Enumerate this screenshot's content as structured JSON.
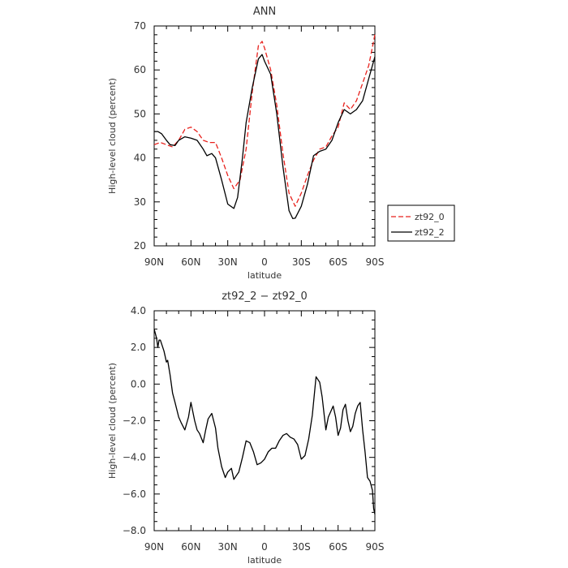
{
  "chart_data": [
    {
      "type": "line",
      "title": "ANN",
      "xlabel": "latitude",
      "ylabel": "High-level cloud (percent)",
      "xlim": [
        90,
        -90
      ],
      "ylim": [
        20,
        70
      ],
      "xticks": [
        90,
        60,
        30,
        0,
        -30,
        -60,
        -90
      ],
      "xtick_labels": [
        "90N",
        "60N",
        "30N",
        "0",
        "30S",
        "60S",
        "90S"
      ],
      "yticks": [
        20,
        30,
        40,
        50,
        60,
        70
      ],
      "ytick_labels": [
        "20",
        "30",
        "40",
        "50",
        "60",
        "70"
      ],
      "legend": "right",
      "series": [
        {
          "name": "zt92_0",
          "color": "#e8211c",
          "dash": "dashed",
          "x": [
            90,
            85,
            80,
            75,
            70,
            65,
            60,
            55,
            50,
            45,
            40,
            35,
            30,
            25,
            20,
            15,
            10,
            5,
            2,
            0,
            -5,
            -10,
            -15,
            -20,
            -25,
            -30,
            -35,
            -40,
            -45,
            -50,
            -55,
            -60,
            -65,
            -70,
            -75,
            -80,
            -85,
            -90
          ],
          "y": [
            43,
            43.5,
            43,
            42.5,
            44,
            46.5,
            47,
            46,
            44,
            43.5,
            43.5,
            40,
            36,
            33,
            35,
            42,
            55,
            65.5,
            66.5,
            65,
            60,
            52,
            41,
            32,
            29,
            32,
            36,
            39.5,
            42,
            42.5,
            45,
            47,
            52.5,
            51,
            53,
            57,
            61,
            68
          ]
        },
        {
          "name": "zt92_2",
          "color": "#000000",
          "dash": "solid",
          "x": [
            90,
            87,
            84,
            80,
            77,
            73,
            70,
            65,
            60,
            55,
            50,
            47,
            43,
            40,
            35,
            30,
            25,
            22,
            18,
            15,
            10,
            5,
            2,
            0,
            -5,
            -10,
            -15,
            -20,
            -23,
            -25,
            -30,
            -35,
            -40,
            -45,
            -50,
            -55,
            -60,
            -65,
            -70,
            -75,
            -80,
            -85,
            -90
          ],
          "y": [
            46,
            46,
            45.5,
            44,
            43,
            42.8,
            44,
            44.8,
            44.5,
            44,
            42,
            40.5,
            41,
            40,
            35,
            29.5,
            28.5,
            31,
            40,
            48,
            56,
            62.5,
            63.5,
            62,
            59,
            50,
            38,
            28,
            26.2,
            26.3,
            29,
            34,
            40.5,
            41.5,
            42,
            44,
            48,
            51,
            50,
            51,
            53,
            58,
            63
          ]
        }
      ]
    },
    {
      "type": "line",
      "title": "zt92_2 − zt92_0",
      "xlabel": "latitude",
      "ylabel": "High-level cloud (percent)",
      "xlim": [
        90,
        -90
      ],
      "ylim": [
        -8,
        4
      ],
      "xticks": [
        90,
        60,
        30,
        0,
        -30,
        -60,
        -90
      ],
      "xtick_labels": [
        "90N",
        "60N",
        "30N",
        "0",
        "30S",
        "60S",
        "90S"
      ],
      "yticks": [
        4,
        2,
        0,
        -2,
        -4,
        -6,
        -8
      ],
      "ytick_labels": [
        "4.0",
        "2.0",
        "0.0",
        "−2.0",
        "−4.0",
        "−6.0",
        "−8.0"
      ],
      "series": [
        {
          "name": "",
          "color": "#000000",
          "dash": "solid",
          "x": [
            90,
            88,
            87,
            86,
            85,
            84,
            82,
            80,
            79,
            77,
            75,
            73,
            70,
            68,
            65,
            62,
            60,
            57,
            55,
            53,
            50,
            48,
            46,
            43,
            40,
            38,
            35,
            32,
            30,
            27,
            25,
            23,
            21,
            18,
            15,
            12,
            9,
            6,
            3,
            0,
            -3,
            -6,
            -9,
            -12,
            -15,
            -18,
            -21,
            -24,
            -27,
            -30,
            -33,
            -36,
            -39,
            -42,
            -45,
            -47,
            -50,
            -52,
            -54,
            -56,
            -58,
            -60,
            -62,
            -64,
            -66,
            -68,
            -70,
            -72,
            -74,
            -76,
            -78,
            -80,
            -82,
            -84,
            -86,
            -88,
            -89,
            -90
          ],
          "y": [
            3.0,
            2.5,
            2.0,
            2.4,
            2.4,
            2.2,
            1.8,
            1.2,
            1.3,
            0.5,
            -0.5,
            -1.0,
            -1.8,
            -2.1,
            -2.5,
            -1.8,
            -1.0,
            -2.0,
            -2.5,
            -2.7,
            -3.2,
            -2.5,
            -1.9,
            -1.6,
            -2.4,
            -3.5,
            -4.5,
            -5.1,
            -4.8,
            -4.6,
            -5.2,
            -5.0,
            -4.8,
            -4.0,
            -3.1,
            -3.2,
            -3.7,
            -4.4,
            -4.3,
            -4.1,
            -3.7,
            -3.5,
            -3.5,
            -3.1,
            -2.8,
            -2.7,
            -2.9,
            -3.0,
            -3.3,
            -4.1,
            -3.9,
            -3.0,
            -1.7,
            0.4,
            0.1,
            -0.7,
            -2.5,
            -1.8,
            -1.5,
            -1.2,
            -1.8,
            -2.8,
            -2.4,
            -1.4,
            -1.1,
            -2.0,
            -2.6,
            -2.3,
            -1.6,
            -1.2,
            -1.0,
            -2.5,
            -3.7,
            -5.1,
            -5.3,
            -5.8,
            -6.8,
            -7.1
          ]
        }
      ]
    }
  ]
}
